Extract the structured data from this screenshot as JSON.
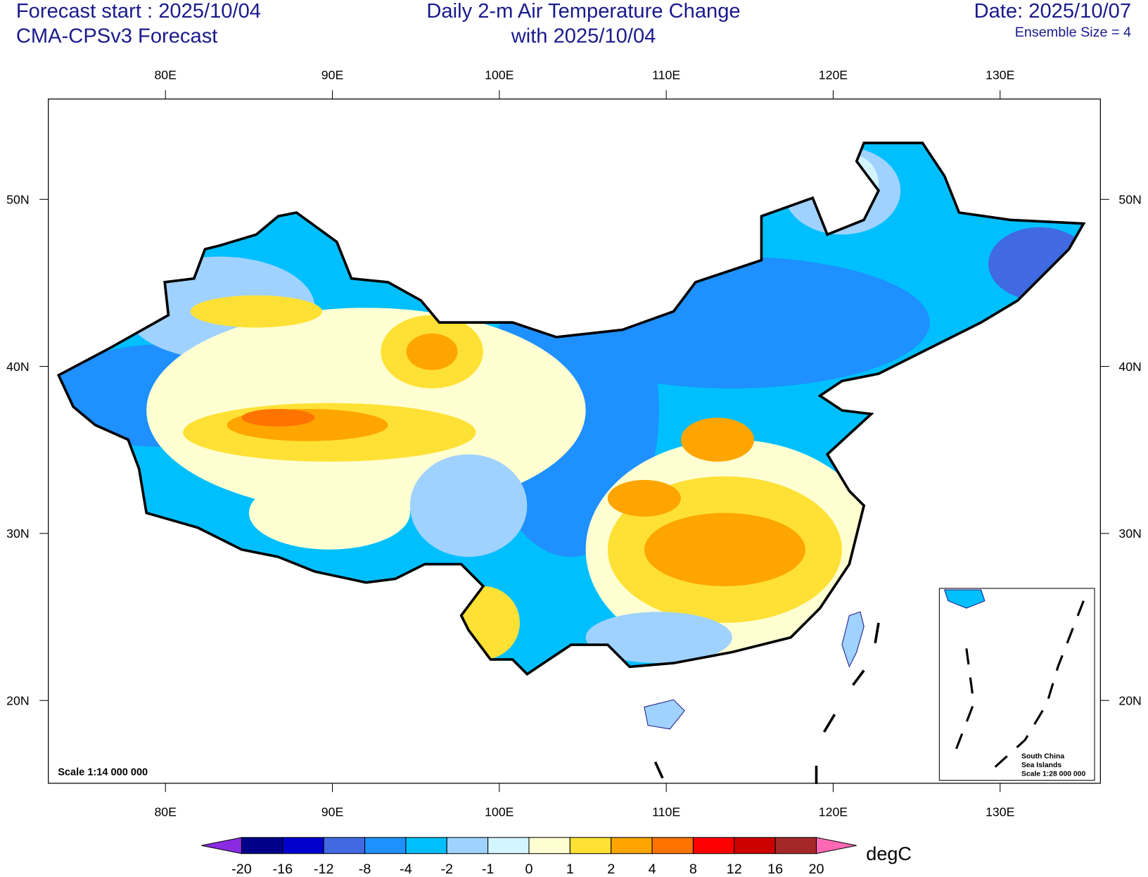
{
  "header": {
    "forecast_start": "Forecast start : 2025/10/04",
    "model": "CMA-CPSv3 Forecast",
    "title": [
      "Daily 2-m Air Temperature Change",
      "with 2025/10/04"
    ],
    "date": "Date: 2025/10/07",
    "ensemble": "Ensemble Size = 4"
  },
  "map": {
    "lon_ticks": [
      {
        "value": 80,
        "label": "80E"
      },
      {
        "value": 90,
        "label": "90E"
      },
      {
        "value": 100,
        "label": "100E"
      },
      {
        "value": 110,
        "label": "110E"
      },
      {
        "value": 120,
        "label": "120E"
      },
      {
        "value": 130,
        "label": "130E"
      }
    ],
    "lat_ticks": [
      {
        "value": 50,
        "label": "50N"
      },
      {
        "value": 40,
        "label": "40N"
      },
      {
        "value": 30,
        "label": "30N"
      },
      {
        "value": 20,
        "label": "20N"
      }
    ],
    "scale": "Scale 1:14 000 000"
  },
  "inset": {
    "lines": [
      "South China",
      "Sea Islands",
      "Scale 1:28 000 000"
    ]
  },
  "colorbar": {
    "levels": [
      -20,
      -16,
      -12,
      -8,
      -4,
      -2,
      -1,
      0,
      1,
      2,
      4,
      8,
      12,
      16,
      20
    ],
    "colors": [
      "#00008b",
      "#0000cd",
      "#4169e1",
      "#1e90ff",
      "#00bfff",
      "#a0d2ff",
      "#d2f5ff",
      "#ffffd2",
      "#ffe135",
      "#ffa500",
      "#ff7300",
      "#ff0000",
      "#cd0000",
      "#a52828"
    ],
    "below_color": "#8a2be2",
    "above_color": "#ff69b4",
    "units": "degC"
  }
}
